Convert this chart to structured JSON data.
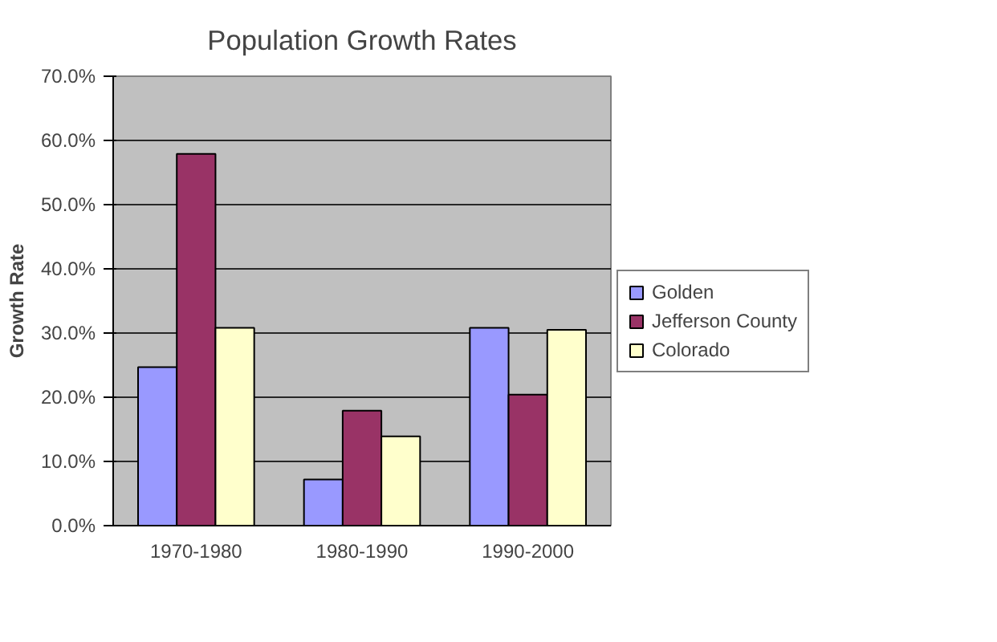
{
  "chart_data": {
    "type": "bar",
    "title": "Population Growth Rates",
    "ylabel": "Growth Rate",
    "categories": [
      "1970-1980",
      "1980-1990",
      "1990-2000"
    ],
    "series": [
      {
        "name": "Golden",
        "color": "#9999ff",
        "values": [
          24.7,
          7.2,
          30.8
        ]
      },
      {
        "name": "Jefferson County",
        "color": "#993366",
        "values": [
          57.9,
          17.9,
          20.4
        ]
      },
      {
        "name": "Colorado",
        "color": "#ffffcc",
        "values": [
          30.8,
          13.9,
          30.5
        ]
      }
    ],
    "ylim": [
      0,
      70
    ],
    "yticks": [
      {
        "value": 0,
        "label": "0.0%"
      },
      {
        "value": 10,
        "label": "10.0%"
      },
      {
        "value": 20,
        "label": "20.0%"
      },
      {
        "value": 30,
        "label": "30.0%"
      },
      {
        "value": 40,
        "label": "40.0%"
      },
      {
        "value": 50,
        "label": "50.0%"
      },
      {
        "value": 60,
        "label": "60.0%"
      },
      {
        "value": 70,
        "label": "70.0%"
      }
    ],
    "grid": "y",
    "legend": "right"
  }
}
